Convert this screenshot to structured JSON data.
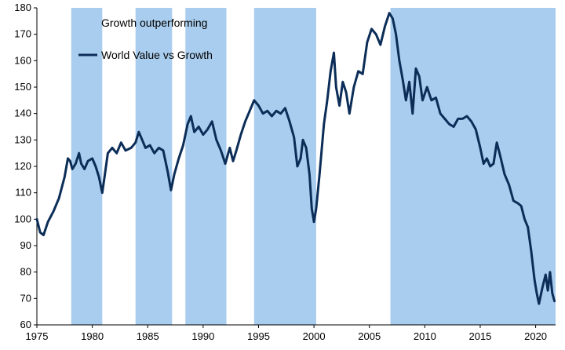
{
  "chart_data": {
    "type": "line",
    "title": "",
    "xlabel": "",
    "ylabel": "",
    "xlim": [
      1975,
      2021.8
    ],
    "ylim": [
      60,
      180
    ],
    "x_ticks": [
      1975,
      1980,
      1985,
      1990,
      1995,
      2000,
      2005,
      2010,
      2015,
      2020
    ],
    "y_ticks": [
      60,
      70,
      80,
      90,
      100,
      110,
      120,
      130,
      140,
      150,
      160,
      170,
      180
    ],
    "legend": {
      "position": "top-left",
      "entries": [
        {
          "label": "Growth outperforming",
          "kind": "shaded-band",
          "color": "#a9cdee"
        },
        {
          "label": "World Value vs Growth",
          "kind": "line",
          "color": "#0b2d57"
        }
      ]
    },
    "shaded_periods": [
      {
        "start": 1978.1,
        "end": 1980.9
      },
      {
        "start": 1983.9,
        "end": 1987.2
      },
      {
        "start": 1988.4,
        "end": 1992.1
      },
      {
        "start": 1994.6,
        "end": 2000.2
      },
      {
        "start": 2006.9,
        "end": 2021.8
      }
    ],
    "series": [
      {
        "name": "World Value vs Growth",
        "color": "#0b2d57",
        "points": [
          [
            1975.0,
            100
          ],
          [
            1975.3,
            95
          ],
          [
            1975.6,
            94
          ],
          [
            1976.0,
            99
          ],
          [
            1976.5,
            103
          ],
          [
            1977.0,
            108
          ],
          [
            1977.5,
            116
          ],
          [
            1977.8,
            123
          ],
          [
            1978.0,
            122
          ],
          [
            1978.2,
            119
          ],
          [
            1978.5,
            121
          ],
          [
            1978.8,
            125
          ],
          [
            1979.0,
            121
          ],
          [
            1979.3,
            119
          ],
          [
            1979.6,
            122
          ],
          [
            1980.0,
            123
          ],
          [
            1980.3,
            120
          ],
          [
            1980.6,
            116
          ],
          [
            1980.9,
            110
          ],
          [
            1981.1,
            116
          ],
          [
            1981.4,
            125
          ],
          [
            1981.8,
            127
          ],
          [
            1982.2,
            125
          ],
          [
            1982.6,
            129
          ],
          [
            1983.0,
            126
          ],
          [
            1983.5,
            127
          ],
          [
            1983.9,
            129
          ],
          [
            1984.2,
            133
          ],
          [
            1984.5,
            130
          ],
          [
            1984.8,
            127
          ],
          [
            1985.2,
            128
          ],
          [
            1985.6,
            125
          ],
          [
            1986.0,
            127
          ],
          [
            1986.4,
            126
          ],
          [
            1986.8,
            118
          ],
          [
            1987.1,
            111
          ],
          [
            1987.4,
            117
          ],
          [
            1987.8,
            123
          ],
          [
            1988.2,
            128
          ],
          [
            1988.6,
            136
          ],
          [
            1988.9,
            139
          ],
          [
            1989.2,
            133
          ],
          [
            1989.6,
            135
          ],
          [
            1990.0,
            132
          ],
          [
            1990.4,
            134
          ],
          [
            1990.8,
            137
          ],
          [
            1991.2,
            130
          ],
          [
            1991.6,
            126
          ],
          [
            1992.0,
            121
          ],
          [
            1992.4,
            127
          ],
          [
            1992.7,
            122
          ],
          [
            1993.0,
            126
          ],
          [
            1993.4,
            132
          ],
          [
            1993.8,
            137
          ],
          [
            1994.2,
            141
          ],
          [
            1994.6,
            145
          ],
          [
            1995.0,
            143
          ],
          [
            1995.4,
            140
          ],
          [
            1995.8,
            141
          ],
          [
            1996.2,
            139
          ],
          [
            1996.6,
            141
          ],
          [
            1997.0,
            140
          ],
          [
            1997.4,
            142
          ],
          [
            1997.8,
            137
          ],
          [
            1998.2,
            131
          ],
          [
            1998.5,
            120
          ],
          [
            1998.8,
            123
          ],
          [
            1999.0,
            130
          ],
          [
            1999.3,
            127
          ],
          [
            1999.6,
            117
          ],
          [
            1999.8,
            104
          ],
          [
            2000.0,
            99
          ],
          [
            2000.2,
            104
          ],
          [
            2000.5,
            117
          ],
          [
            2000.9,
            136
          ],
          [
            2001.2,
            145
          ],
          [
            2001.5,
            156
          ],
          [
            2001.8,
            163
          ],
          [
            2002.0,
            150
          ],
          [
            2002.3,
            143
          ],
          [
            2002.6,
            152
          ],
          [
            2002.9,
            148
          ],
          [
            2003.2,
            140
          ],
          [
            2003.6,
            150
          ],
          [
            2004.0,
            156
          ],
          [
            2004.4,
            155
          ],
          [
            2004.8,
            167
          ],
          [
            2005.2,
            172
          ],
          [
            2005.6,
            170
          ],
          [
            2006.0,
            166
          ],
          [
            2006.4,
            173
          ],
          [
            2006.8,
            178
          ],
          [
            2007.1,
            176
          ],
          [
            2007.4,
            170
          ],
          [
            2007.7,
            160
          ],
          [
            2008.0,
            153
          ],
          [
            2008.3,
            145
          ],
          [
            2008.6,
            152
          ],
          [
            2008.9,
            140
          ],
          [
            2009.2,
            157
          ],
          [
            2009.5,
            154
          ],
          [
            2009.8,
            145
          ],
          [
            2010.2,
            150
          ],
          [
            2010.6,
            145
          ],
          [
            2011.0,
            146
          ],
          [
            2011.4,
            140
          ],
          [
            2011.8,
            138
          ],
          [
            2012.2,
            136
          ],
          [
            2012.6,
            135
          ],
          [
            2013.0,
            138
          ],
          [
            2013.4,
            138
          ],
          [
            2013.8,
            139
          ],
          [
            2014.2,
            137
          ],
          [
            2014.6,
            134
          ],
          [
            2015.0,
            127
          ],
          [
            2015.3,
            121
          ],
          [
            2015.6,
            123
          ],
          [
            2015.9,
            120
          ],
          [
            2016.2,
            121
          ],
          [
            2016.5,
            129
          ],
          [
            2016.8,
            124
          ],
          [
            2017.2,
            117
          ],
          [
            2017.6,
            113
          ],
          [
            2018.0,
            107
          ],
          [
            2018.4,
            106
          ],
          [
            2018.7,
            105
          ],
          [
            2019.0,
            100
          ],
          [
            2019.3,
            97
          ],
          [
            2019.6,
            88
          ],
          [
            2019.9,
            77
          ],
          [
            2020.1,
            72
          ],
          [
            2020.3,
            68
          ],
          [
            2020.6,
            74
          ],
          [
            2020.9,
            79
          ],
          [
            2021.1,
            73
          ],
          [
            2021.3,
            80
          ],
          [
            2021.5,
            72
          ],
          [
            2021.7,
            69
          ]
        ]
      }
    ]
  }
}
